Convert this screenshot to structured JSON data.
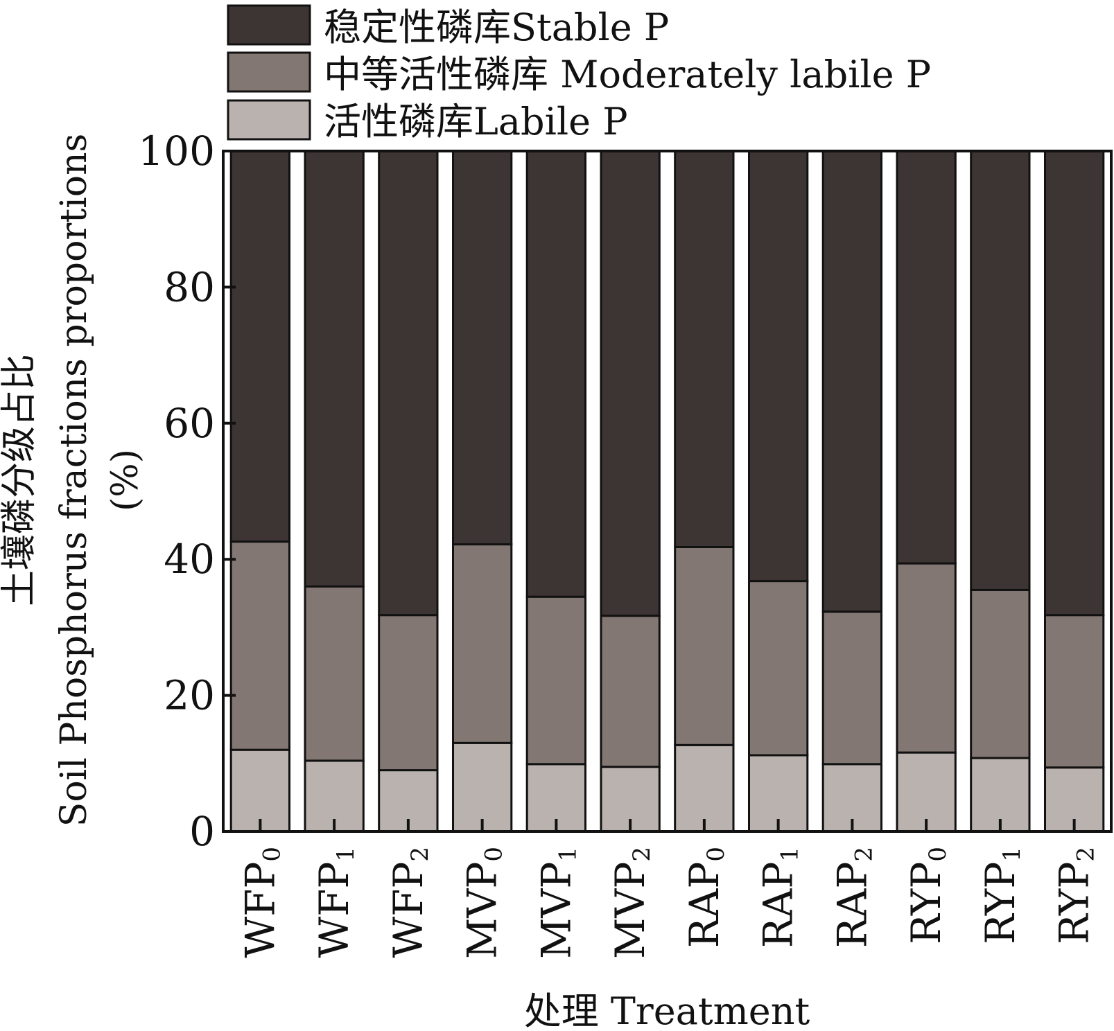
{
  "chart_data": {
    "type": "bar",
    "stacked": true,
    "title": "",
    "ylabel_cn": "土壤磷分级占比",
    "ylabel_en": "Soil Phosphorus fractions proportions",
    "ylabel_unit": "(%)",
    "xlabel": "处理 Treatment",
    "ylim": [
      0,
      100
    ],
    "yticks": [
      "0",
      "20",
      "40",
      "60",
      "80",
      "100"
    ],
    "legend_position": "top-left",
    "categories": [
      {
        "base": "WFP",
        "sub": "0"
      },
      {
        "base": "WFP",
        "sub": "1"
      },
      {
        "base": "WFP",
        "sub": "2"
      },
      {
        "base": "MVP",
        "sub": "0"
      },
      {
        "base": "MVP",
        "sub": "1"
      },
      {
        "base": "MVP",
        "sub": "2"
      },
      {
        "base": "RAP",
        "sub": "0"
      },
      {
        "base": "RAP",
        "sub": "1"
      },
      {
        "base": "RAP",
        "sub": "2"
      },
      {
        "base": "RYP",
        "sub": "0"
      },
      {
        "base": "RYP",
        "sub": "1"
      },
      {
        "base": "RYP",
        "sub": "2"
      }
    ],
    "series": [
      {
        "name": "活性磷库Labile P",
        "color": "#bab2ae",
        "values": [
          12.0,
          10.4,
          9.0,
          13.0,
          9.9,
          9.5,
          12.7,
          11.2,
          9.9,
          11.6,
          10.8,
          9.4
        ]
      },
      {
        "name": "中等活性磷库 Moderately labile P",
        "color": "#827773",
        "values": [
          30.6,
          25.6,
          22.8,
          29.2,
          24.6,
          22.2,
          29.1,
          25.6,
          22.4,
          27.8,
          24.7,
          22.4
        ]
      },
      {
        "name": "稳定性磷库Stable P",
        "color": "#3d3533",
        "values": [
          57.4,
          64.0,
          68.2,
          57.8,
          65.5,
          68.3,
          58.2,
          63.2,
          67.7,
          60.6,
          64.5,
          68.2
        ]
      }
    ]
  }
}
